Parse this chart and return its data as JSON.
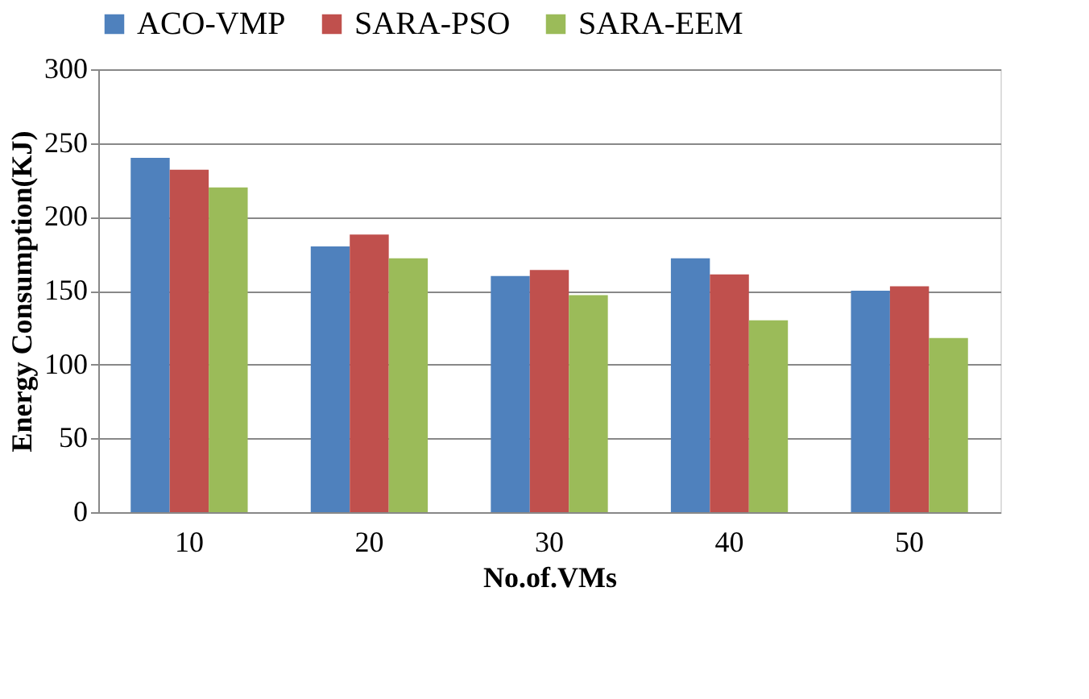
{
  "chart_data": {
    "type": "bar",
    "xlabel": "No.of.VMs",
    "ylabel": "Energy Consumption(KJ)",
    "categories": [
      "10",
      "20",
      "30",
      "40",
      "50"
    ],
    "series": [
      {
        "name": "ACO-VMP",
        "color": "#4f81bd",
        "values": [
          240,
          180,
          160,
          172,
          150
        ]
      },
      {
        "name": "SARA-PSO",
        "color": "#c0504d",
        "values": [
          232,
          188,
          164,
          161,
          153
        ]
      },
      {
        "name": "SARA-EEM",
        "color": "#9bbb59",
        "values": [
          220,
          172,
          147,
          130,
          118
        ]
      }
    ],
    "ylim": [
      0,
      300
    ],
    "yticks": [
      0,
      50,
      100,
      150,
      200,
      250,
      300
    ],
    "grid": "y",
    "legend": "top"
  }
}
